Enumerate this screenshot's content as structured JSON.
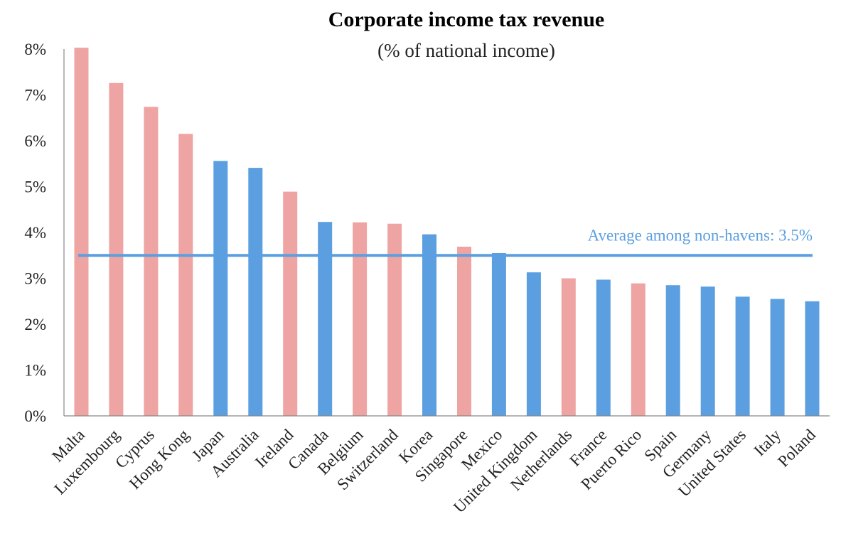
{
  "chart_data": {
    "type": "bar",
    "title": "Corporate income tax revenue",
    "subtitle": "(% of national income)",
    "xlabel": "",
    "ylabel": "",
    "ylim": [
      0,
      8
    ],
    "y_ticks": [
      "0%",
      "1%",
      "2%",
      "3%",
      "4%",
      "5%",
      "6%",
      "7%",
      "8%"
    ],
    "grid": false,
    "legend": "none",
    "categories": [
      "Malta",
      "Luxembourg",
      "Cyprus",
      "Hong Kong",
      "Japan",
      "Australia",
      "Ireland",
      "Canada",
      "Belgium",
      "Switzerland",
      "Korea",
      "Singapore",
      "Mexico",
      "United Kingdom",
      "Netherlands",
      "France",
      "Puerto Rico",
      "Spain",
      "Germany",
      "United States",
      "Italy",
      "Poland"
    ],
    "values": [
      8.03,
      7.26,
      6.74,
      6.15,
      5.56,
      5.41,
      4.89,
      4.23,
      4.22,
      4.19,
      3.96,
      3.69,
      3.55,
      3.13,
      3.0,
      2.97,
      2.89,
      2.85,
      2.82,
      2.6,
      2.55,
      2.5
    ],
    "haven": [
      true,
      true,
      true,
      true,
      false,
      false,
      true,
      false,
      true,
      true,
      false,
      true,
      false,
      false,
      true,
      false,
      true,
      false,
      false,
      false,
      false,
      false
    ],
    "colors": {
      "haven": "#eea4a3",
      "non_haven": "#5b9fe0",
      "average_line": "#5b9fe0",
      "axis": "#888888"
    },
    "average": {
      "value": 3.5,
      "label": "Average among non-havens: 3.5%"
    }
  }
}
